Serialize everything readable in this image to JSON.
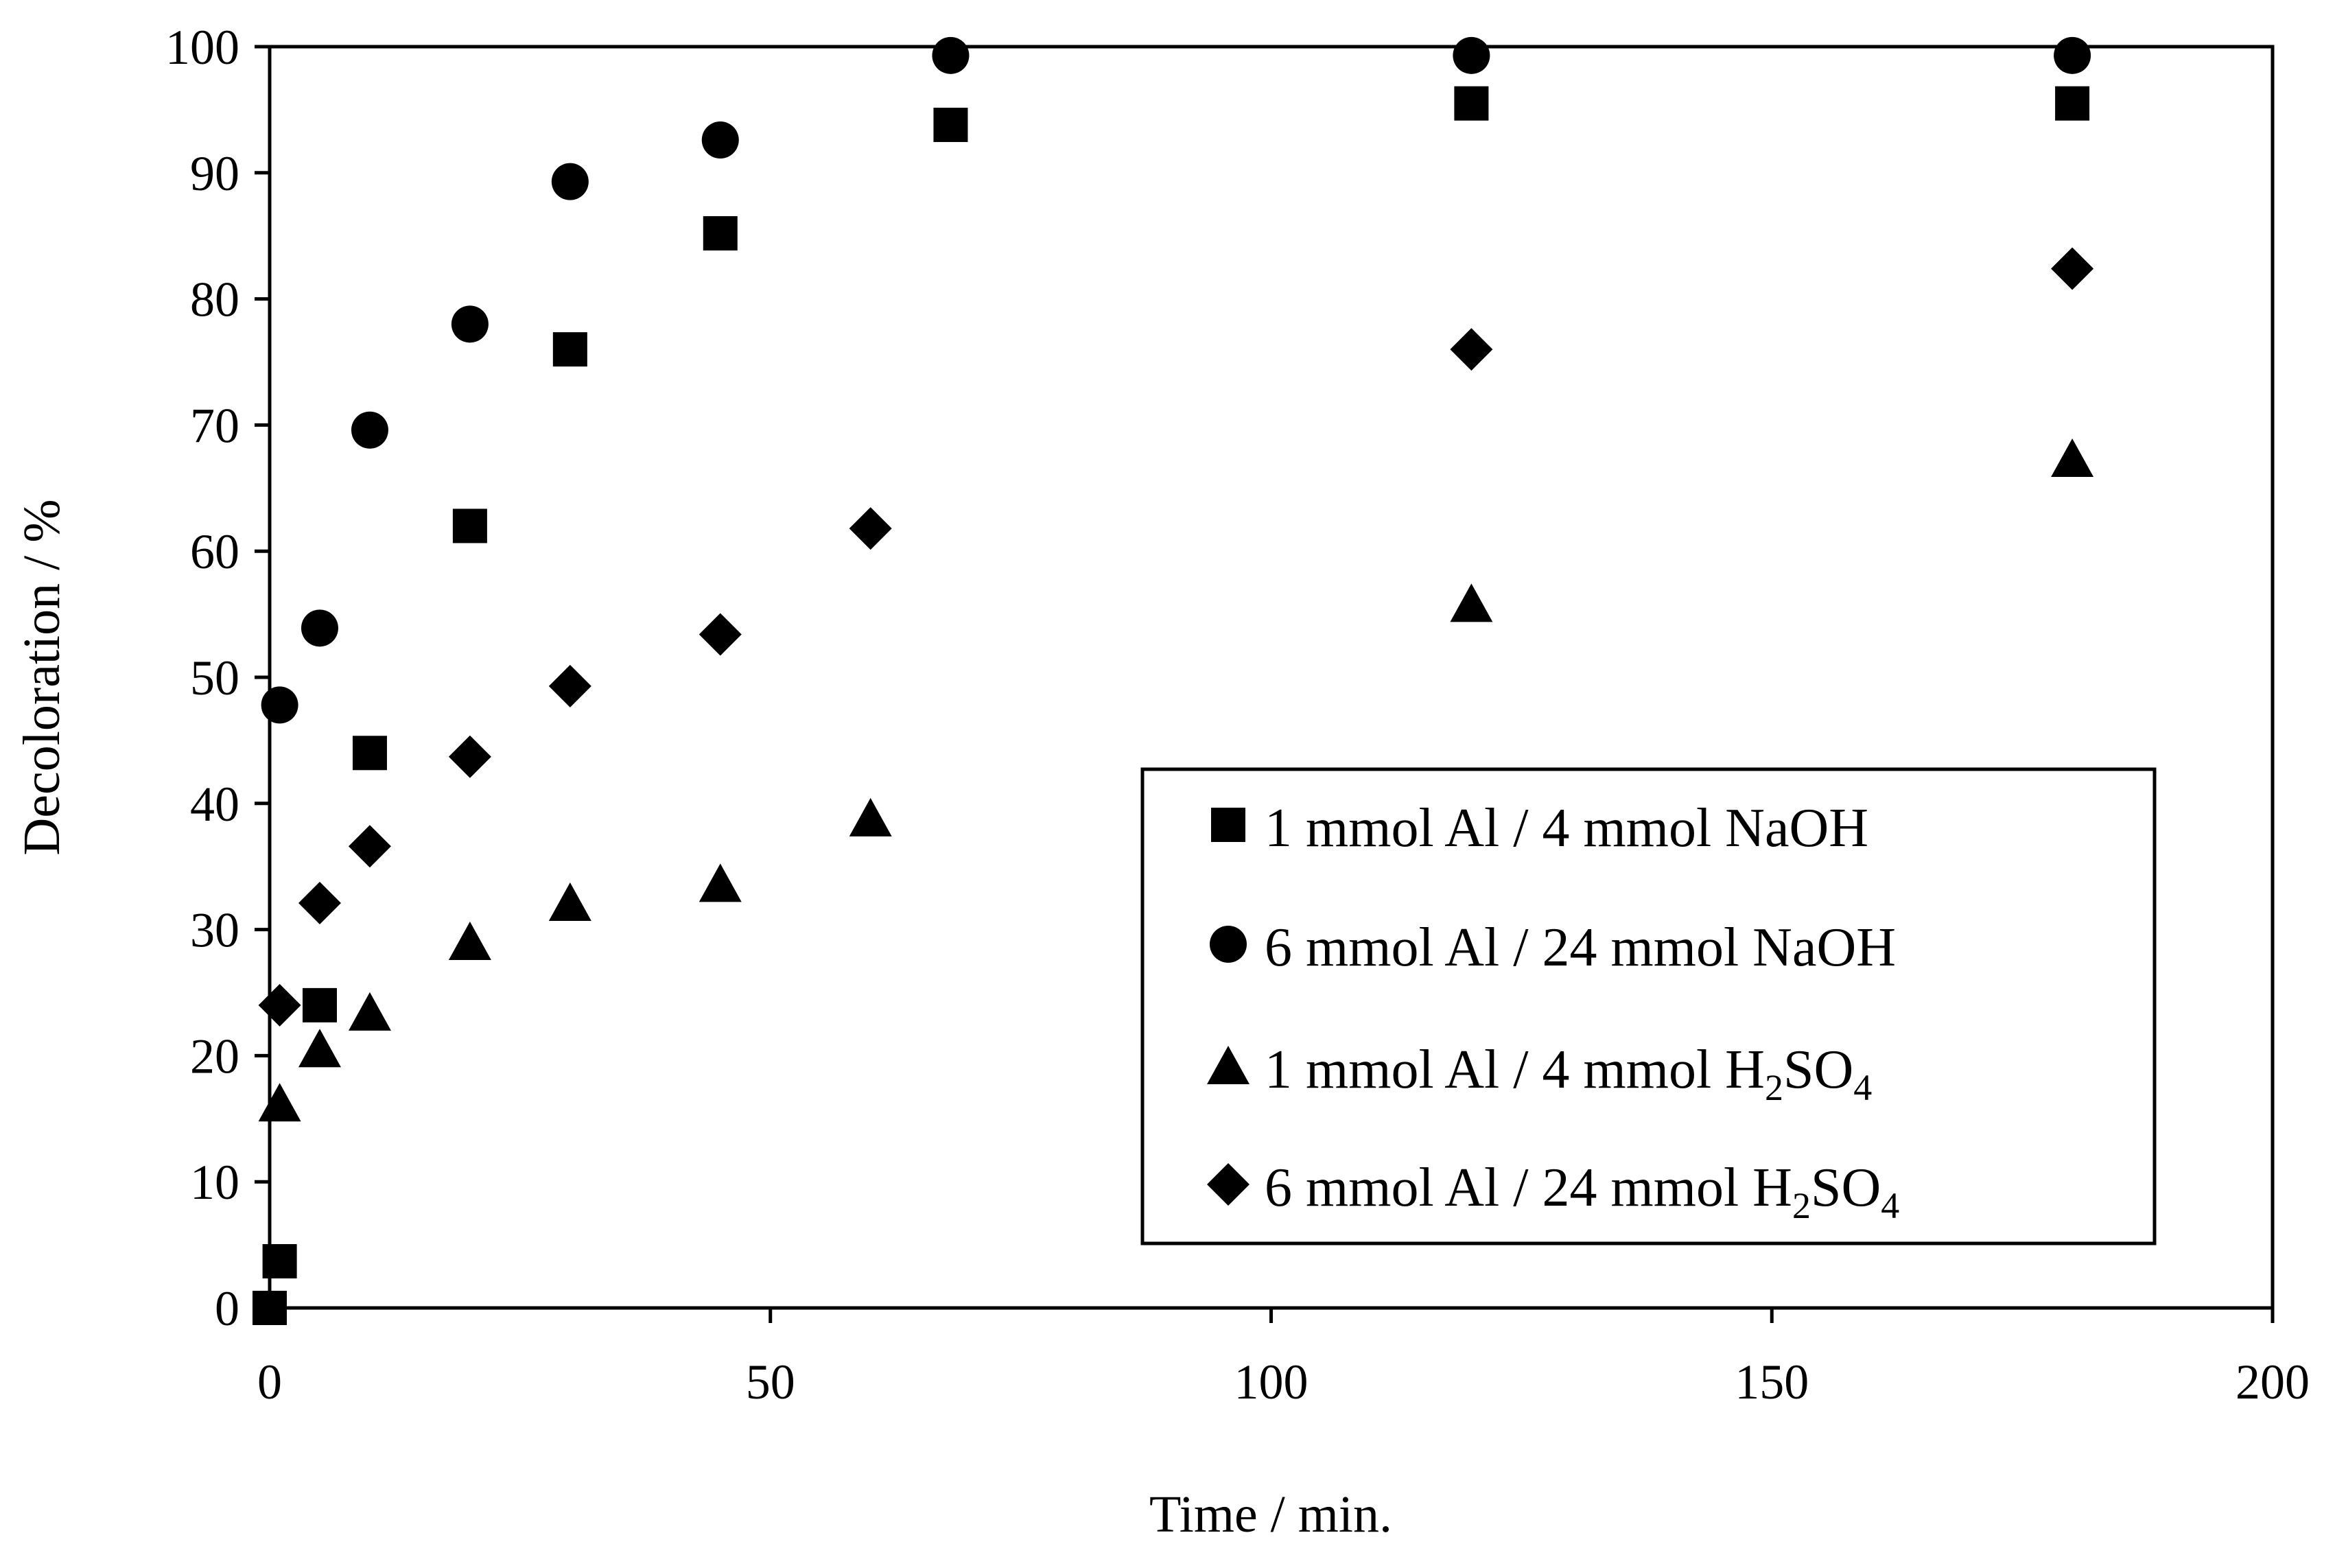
{
  "chart_data": {
    "type": "scatter",
    "title": "",
    "xlabel": "Time / min.",
    "ylabel": "Decoloration / %",
    "xlim": [
      0,
      200
    ],
    "ylim": [
      0,
      100
    ],
    "xticks": [
      0,
      50,
      100,
      150,
      200
    ],
    "yticks": [
      0,
      10,
      20,
      30,
      40,
      50,
      60,
      70,
      80,
      90,
      100
    ],
    "grid": false,
    "legend_position": "center-right",
    "colors": {
      "marker": "#000000",
      "axis": "#000000",
      "background": "#ffffff"
    },
    "series": [
      {
        "name": "1 mmol Al / 4 mmol NaOH",
        "legend": {
          "main": "1 mmol Al / 4 mmol NaOH",
          "sub": "",
          "tail": ""
        },
        "marker": "square",
        "x": [
          0,
          1,
          5,
          10,
          20,
          30,
          45,
          68,
          120,
          180
        ],
        "y": [
          0,
          3.7,
          24,
          44,
          62,
          76,
          85.2,
          93.8,
          95.5,
          95.5
        ]
      },
      {
        "name": "6 mmol Al / 24 mmol NaOH",
        "legend": {
          "main": "6 mmol Al / 24 mmol NaOH",
          "sub": "",
          "tail": ""
        },
        "marker": "circle",
        "x": [
          1,
          5,
          10,
          20,
          30,
          45,
          68,
          120,
          180
        ],
        "y": [
          47.8,
          53.9,
          69.6,
          78,
          89.3,
          92.6,
          99.3,
          99.3,
          99.3
        ]
      },
      {
        "name": "1 mmol Al / 4 mmol H2SO4",
        "legend": {
          "main": "1 mmol Al / 4 mmol H",
          "sub": "2",
          "mid": "SO",
          "sub2": "4"
        },
        "marker": "triangle",
        "x": [
          1,
          5,
          10,
          20,
          30,
          45,
          60,
          120,
          180
        ],
        "y": [
          16.2,
          20.5,
          23.4,
          29,
          32.1,
          33.6,
          38.8,
          55.8,
          67.3
        ]
      },
      {
        "name": "6 mmol Al / 24 mmol H2SO4",
        "legend": {
          "main": "6 mmol Al / 24 mmol H",
          "sub": "2",
          "mid": "SO",
          "sub2": "4"
        },
        "marker": "diamond",
        "x": [
          1,
          5,
          10,
          20,
          30,
          45,
          60,
          120,
          180
        ],
        "y": [
          24,
          32.1,
          36.6,
          43.7,
          49.3,
          53.4,
          61.8,
          76,
          82.4
        ]
      }
    ]
  }
}
